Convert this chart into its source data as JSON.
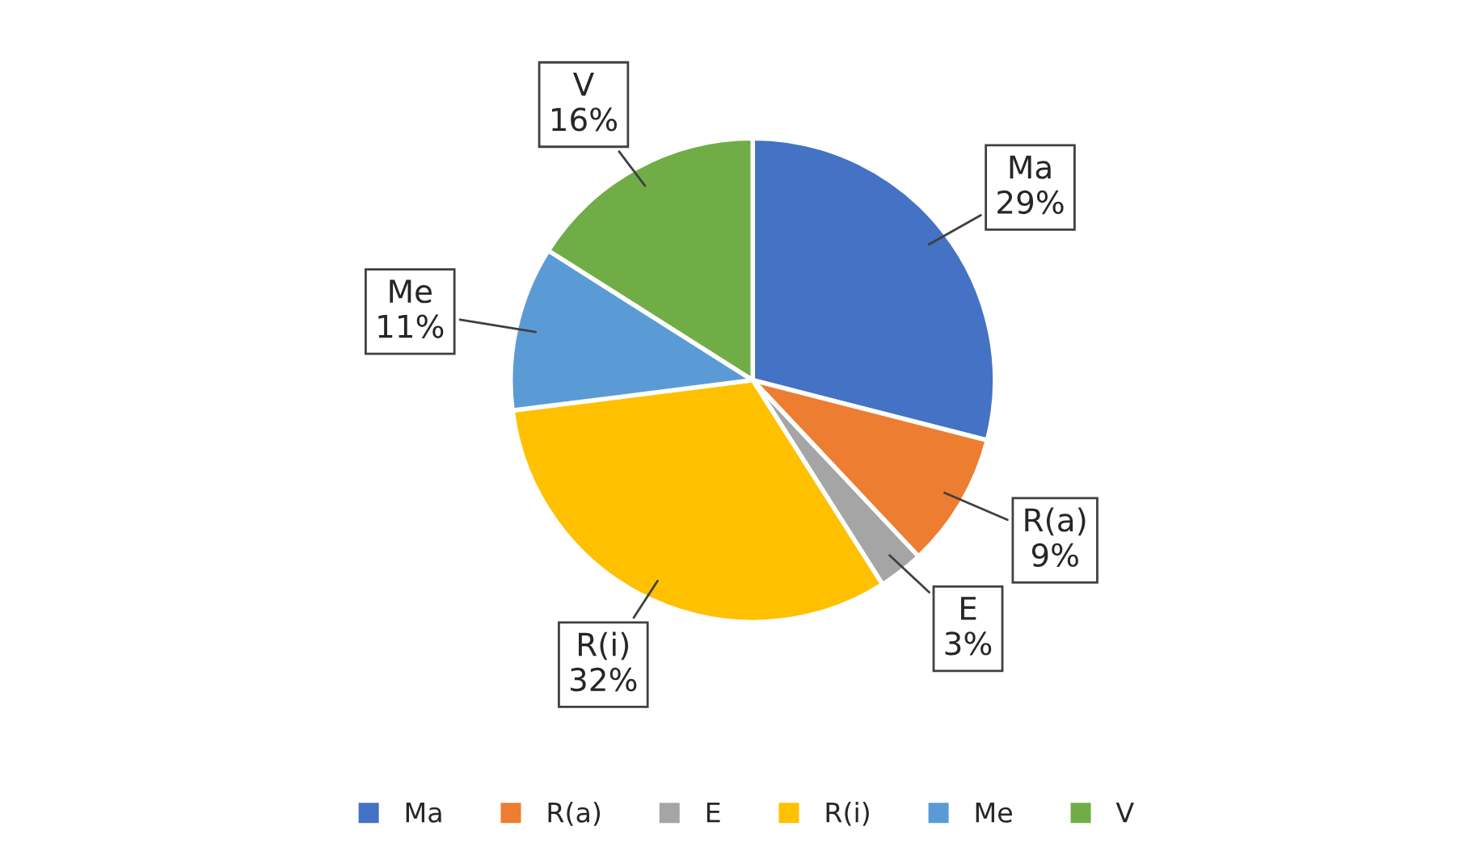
{
  "chart_data": {
    "type": "pie",
    "categories": [
      "Ma",
      "R(a)",
      "E",
      "R(i)",
      "Me",
      "V"
    ],
    "values": [
      29,
      9,
      3,
      32,
      11,
      16
    ],
    "colors": [
      "#4472c4",
      "#ed7d31",
      "#a5a5a5",
      "#ffc000",
      "#5b9bd5",
      "#70ad47"
    ],
    "value_labels": [
      "29%",
      "9%",
      "3%",
      "32%",
      "11%",
      "16%"
    ],
    "legend": "bottom"
  }
}
